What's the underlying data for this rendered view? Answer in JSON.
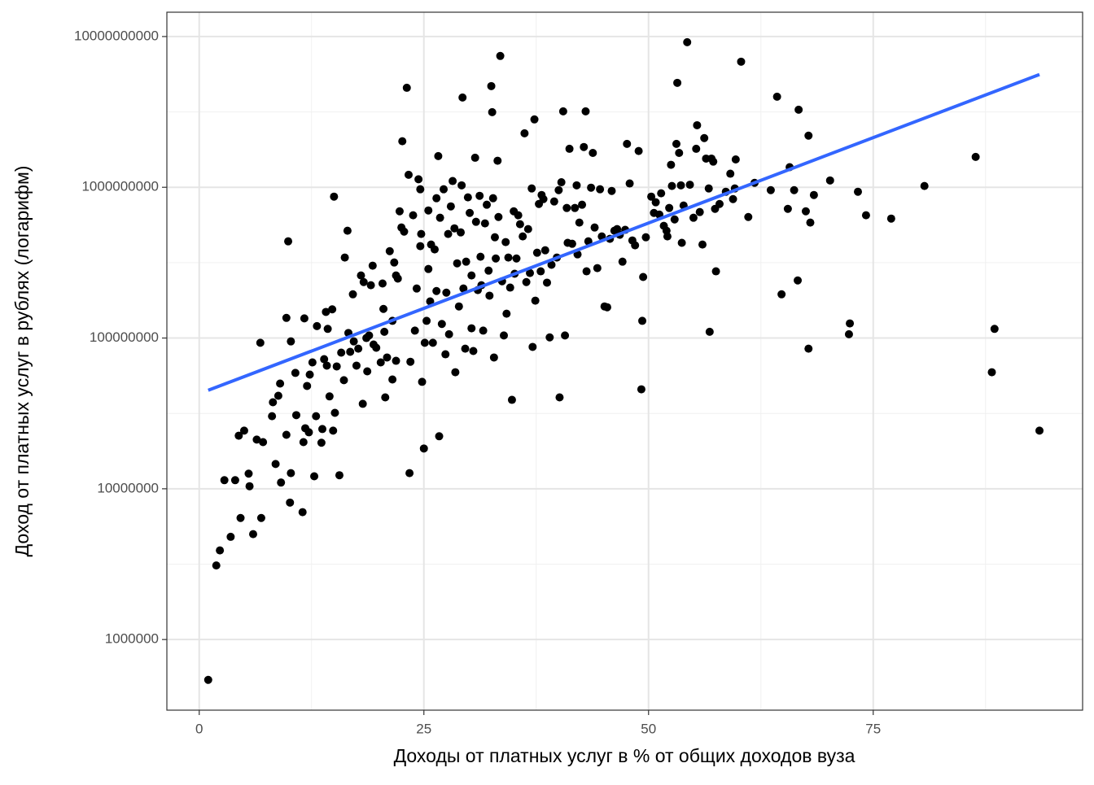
{
  "chart_data": {
    "type": "scatter",
    "xlabel": "Доходы от платных услуг в % от общих доходов вуза",
    "ylabel": "Доход от платных услуг в рублях (логарифм)",
    "xlim": [
      -3.6,
      98.3
    ],
    "ylim": [
      340000,
      14500000000
    ],
    "xticks": [
      0,
      25,
      50,
      75
    ],
    "yticks": [
      1000000,
      10000000,
      100000000,
      1000000000,
      10000000000
    ],
    "log_scale": "y",
    "grid": true,
    "color": "#000000",
    "x": [
      1.0,
      1.9,
      2.3,
      2.8,
      4.0,
      3.5,
      4.6,
      4.4,
      5.0,
      5.5,
      5.6,
      6.0,
      6.4,
      6.9,
      7.1,
      6.8,
      8.1,
      8.2,
      8.5,
      8.8,
      9.0,
      9.1,
      9.7,
      9.9,
      9.7,
      10.2,
      10.1,
      10.2,
      10.7,
      10.8,
      11.5,
      11.6,
      11.7,
      11.8,
      12.0,
      12.3,
      12.6,
      12.2,
      12.8,
      13.0,
      13.1,
      13.6,
      13.7,
      13.9,
      14.2,
      14.1,
      14.3,
      14.5,
      14.8,
      14.9,
      15.0,
      15.1,
      15.3,
      15.6,
      15.8,
      16.1,
      16.2,
      16.5,
      16.6,
      16.8,
      17.1,
      17.2,
      17.5,
      17.7,
      18.0,
      18.2,
      18.3,
      18.6,
      18.7,
      18.9,
      19.1,
      19.3,
      19.4,
      19.7,
      20.2,
      20.4,
      20.6,
      20.5,
      20.7,
      20.9,
      21.2,
      21.5,
      21.5,
      21.7,
      21.9,
      22.1,
      21.9,
      22.3,
      22.5,
      22.6,
      22.8,
      23.1,
      23.3,
      23.4,
      23.5,
      23.8,
      24.0,
      24.2,
      24.4,
      24.6,
      24.6,
      24.7,
      24.8,
      25.0,
      25.1,
      25.3,
      25.5,
      25.5,
      25.7,
      25.8,
      26.0,
      26.2,
      26.4,
      26.4,
      26.6,
      26.7,
      26.8,
      27.0,
      27.2,
      27.4,
      27.5,
      27.7,
      27.8,
      28.0,
      28.2,
      28.4,
      28.5,
      28.7,
      28.9,
      29.1,
      29.2,
      29.3,
      29.4,
      29.6,
      29.7,
      29.9,
      30.1,
      30.3,
      30.3,
      30.5,
      30.7,
      30.8,
      31.0,
      31.2,
      31.3,
      31.4,
      31.6,
      31.8,
      32.0,
      32.2,
      32.3,
      32.5,
      32.6,
      32.7,
      32.8,
      32.9,
      33.0,
      33.2,
      33.3,
      33.5,
      33.7,
      33.9,
      34.1,
      34.2,
      34.4,
      34.6,
      34.8,
      35.0,
      35.1,
      35.3,
      35.5,
      35.7,
      36.0,
      36.2,
      36.4,
      36.6,
      36.8,
      37.0,
      37.1,
      37.3,
      37.4,
      37.6,
      37.8,
      38.0,
      38.1,
      38.3,
      38.5,
      38.7,
      39.0,
      39.2,
      39.5,
      39.8,
      40.0,
      40.1,
      40.3,
      40.5,
      40.7,
      40.9,
      41.0,
      41.2,
      41.5,
      41.8,
      42.0,
      42.1,
      42.3,
      42.6,
      42.8,
      43.0,
      43.1,
      43.3,
      43.6,
      43.8,
      44.0,
      44.3,
      44.6,
      44.8,
      45.1,
      45.4,
      45.7,
      45.9,
      46.2,
      46.5,
      46.8,
      47.1,
      47.4,
      47.6,
      47.9,
      48.2,
      48.5,
      48.9,
      49.2,
      49.3,
      49.4,
      49.7,
      50.3,
      50.6,
      50.8,
      51.2,
      51.4,
      51.7,
      52.0,
      52.1,
      52.3,
      52.5,
      52.6,
      52.9,
      53.1,
      53.2,
      53.4,
      53.6,
      53.7,
      53.9,
      54.3,
      54.6,
      55.0,
      55.3,
      55.4,
      55.7,
      56.0,
      56.2,
      56.4,
      56.7,
      56.8,
      57.0,
      57.2,
      57.4,
      57.5,
      57.9,
      58.6,
      59.1,
      59.4,
      59.7,
      59.6,
      60.3,
      61.1,
      61.8,
      63.6,
      64.3,
      64.8,
      65.5,
      65.7,
      66.2,
      66.6,
      66.7,
      67.5,
      67.8,
      67.8,
      68.0,
      68.4,
      70.2,
      72.3,
      72.4,
      73.3,
      74.2,
      77.0,
      80.7,
      86.4,
      88.2,
      88.5,
      93.5
    ],
    "values": [
      540000,
      3100000,
      3900000,
      11400000,
      11400000,
      4800000,
      6400000,
      22500000,
      24300000,
      12600000,
      10400000,
      5000000,
      21200000,
      6400000,
      20400000,
      93000000,
      30300000,
      37500000,
      14600000,
      41400000,
      49900000,
      11000000,
      22800000,
      438000000,
      136000000,
      95000000,
      8100000,
      12700000,
      58700000,
      30800000,
      7000000,
      20400000,
      135000000,
      25200000,
      48100000,
      57200000,
      68900000,
      23700000,
      12100000,
      30300000,
      120000000,
      20200000,
      24900000,
      72400000,
      65600000,
      149000000,
      115000000,
      41000000,
      155000000,
      24300000,
      867000000,
      31900000,
      64800000,
      12300000,
      80000000,
      52500000,
      342000000,
      515000000,
      108000000,
      81000000,
      195000000,
      95000000,
      65600000,
      85000000,
      260000000,
      36600000,
      235000000,
      100000000,
      60100000,
      104000000,
      224000000,
      302000000,
      90600000,
      86200000,
      68900000,
      230000000,
      110000000,
      156000000,
      40400000,
      74300000,
      377000000,
      53100000,
      130000000,
      317000000,
      260000000,
      248000000,
      70600000,
      693000000,
      541000000,
      2020000000,
      508000000,
      4570000000,
      1210000000,
      12700000,
      69600000,
      652000000,
      112000000,
      213000000,
      1130000000,
      407000000,
      970000000,
      490000000,
      51200000,
      18500000,
      93000000,
      130000000,
      702000000,
      287000000,
      175000000,
      417000000,
      93000000,
      387000000,
      205000000,
      846000000,
      1610000000,
      22300000,
      628000000,
      124000000,
      970000000,
      78000000,
      200000000,
      490000000,
      106000000,
      747000000,
      1100000000,
      534000000,
      59300000,
      313000000,
      162000000,
      502000000,
      1030000000,
      3940000000,
      213000000,
      85000000,
      321000000,
      857000000,
      676000000,
      116000000,
      260000000,
      82000000,
      1570000000,
      590000000,
      208000000,
      878000000,
      346000000,
      224000000,
      112000000,
      576000000,
      766000000,
      280000000,
      191000000,
      4690000000,
      3150000000,
      846000000,
      74300000,
      466000000,
      337000000,
      1500000000,
      635000000,
      7430000000,
      238000000,
      104000000,
      433000000,
      145000000,
      342000000,
      216000000,
      38900000,
      693000000,
      267000000,
      337000000,
      652000000,
      569000000,
      472000000,
      2280000000,
      235000000,
      528000000,
      270000000,
      982000000,
      87300000,
      2820000000,
      177000000,
      368000000,
      775000000,
      277000000,
      889000000,
      835000000,
      382000000,
      233000000,
      101000000,
      306000000,
      805000000,
      342000000,
      957000000,
      40400000,
      1080000000,
      3190000000,
      104000000,
      729000000,
      428000000,
      1800000000,
      422000000,
      729000000,
      1030000000,
      359000000,
      583000000,
      766000000,
      1850000000,
      3190000000,
      277000000,
      438000000,
      994000000,
      1690000000,
      541000000,
      291000000,
      970000000,
      472000000,
      162000000,
      160000000,
      455000000,
      946000000,
      515000000,
      528000000,
      484000000,
      321000000,
      522000000,
      1940000000,
      1060000000,
      444000000,
      412000000,
      1740000000,
      45700000,
      130000000,
      254000000,
      466000000,
      867000000,
      676000000,
      795000000,
      659000000,
      912000000,
      555000000,
      515000000,
      472000000,
      729000000,
      1410000000,
      1020000000,
      612000000,
      1940000000,
      4930000000,
      1690000000,
      1030000000,
      428000000,
      757000000,
      9170000000,
      1040000000,
      628000000,
      1800000000,
      2580000000,
      685000000,
      417000000,
      2120000000,
      1550000000,
      982000000,
      110000000,
      1550000000,
      1480000000,
      719000000,
      277000000,
      775000000,
      934000000,
      1230000000,
      835000000,
      1530000000,
      982000000,
      6810000000,
      635000000,
      1070000000,
      957000000,
      3990000000,
      195000000,
      719000000,
      1360000000,
      957000000,
      241000000,
      3270000000,
      693000000,
      2200000000,
      85000000,
      583000000,
      889000000,
      1110000000,
      106000000,
      125000000,
      934000000,
      652000000,
      620000000,
      1020000000,
      1590000000,
      59300000,
      115000000,
      24300000
    ],
    "trend": {
      "color": "#3366ff",
      "x": [
        1,
        93.5
      ],
      "y": [
        45000000,
        5600000000
      ]
    }
  }
}
